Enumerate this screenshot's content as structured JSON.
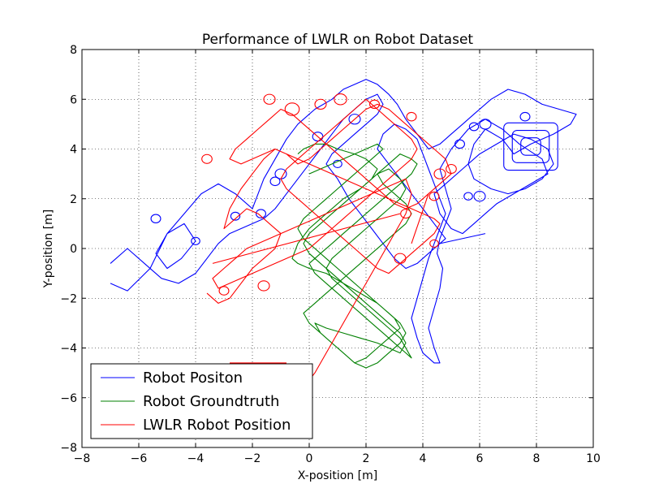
{
  "chart_data": {
    "type": "line",
    "title": "Performance of LWLR on Robot Dataset",
    "xlabel": "X-position [m]",
    "ylabel": "Y-position [m]",
    "xlim": [
      -8,
      10
    ],
    "ylim": [
      -8,
      8
    ],
    "xticks": [
      "−8",
      "−6",
      "−4",
      "−2",
      "0",
      "2",
      "4",
      "6",
      "8",
      "10"
    ],
    "yticks": [
      "−8",
      "−6",
      "−4",
      "−2",
      "0",
      "2",
      "4",
      "6",
      "8"
    ],
    "grid": true,
    "legend_position": "lower-left",
    "series": [
      {
        "name": "Robot Positon",
        "color": "#0000ff",
        "x": [
          -7.0,
          -6.4,
          -5.6,
          -5.0,
          -4.4,
          -4.0,
          -4.5,
          -5.0,
          -5.4,
          -5.0,
          -4.4,
          -3.8,
          -3.2,
          -2.6,
          -2.0,
          -1.6,
          -1.2,
          -0.8,
          -0.4,
          0.2,
          0.8,
          1.2,
          1.6,
          2.0,
          2.4,
          2.8,
          3.1,
          3.4,
          3.8,
          4.2,
          4.6,
          5.0,
          5.4,
          5.8,
          6.4,
          7.0,
          7.6,
          8.2,
          8.8,
          9.4,
          9.2,
          8.6,
          7.8,
          7.2,
          6.8,
          6.2,
          5.8,
          5.6,
          5.8,
          6.4,
          7.0,
          7.6,
          8.2,
          8.6,
          8.4,
          7.8,
          7.2,
          6.6,
          6.0,
          5.4,
          4.8,
          4.4,
          4.6,
          5.0,
          5.4,
          5.8,
          6.2,
          6.6,
          7.2,
          7.8,
          8.4,
          8.2,
          7.4,
          6.8,
          6.2,
          5.6,
          5.0,
          4.6,
          4.8,
          5.0,
          4.8,
          4.6,
          4.5,
          4.7,
          4.6,
          4.4,
          4.2,
          4.4,
          4.6,
          4.4,
          4.0,
          3.8,
          3.6,
          3.8,
          4.0,
          4.2,
          4.4,
          4.6,
          4.8,
          4.6,
          4.4,
          4.2,
          4.0,
          3.8,
          3.4,
          3.0,
          2.6,
          2.4,
          2.8,
          3.2,
          3.6,
          4.0,
          4.4,
          4.8,
          4.2,
          3.8,
          3.4,
          3.0,
          2.6,
          2.2,
          1.8,
          1.4,
          1.0,
          0.6,
          0.8,
          1.2,
          1.6,
          2.0,
          2.4,
          2.6,
          2.4,
          2.0,
          1.6,
          1.2,
          0.8,
          0.4,
          0.0,
          -0.4,
          -0.8,
          -1.2,
          -1.6,
          -2.0,
          -2.4,
          -2.8,
          -3.2,
          -3.6,
          -4.0,
          -4.6,
          -5.2,
          -5.8,
          -6.4,
          -7.0
        ],
        "y": [
          -1.4,
          -1.7,
          -0.8,
          0.6,
          1.0,
          0.3,
          -0.4,
          -0.8,
          -0.2,
          0.6,
          1.4,
          2.2,
          2.6,
          2.2,
          1.6,
          2.8,
          3.6,
          4.4,
          5.0,
          5.6,
          6.0,
          6.4,
          6.6,
          6.8,
          6.6,
          6.2,
          5.8,
          5.2,
          4.6,
          4.0,
          4.2,
          4.6,
          5.0,
          5.4,
          6.0,
          6.4,
          6.2,
          5.8,
          5.6,
          5.4,
          5.0,
          4.6,
          4.2,
          3.8,
          4.4,
          4.8,
          4.2,
          3.4,
          2.8,
          2.4,
          2.2,
          2.4,
          2.8,
          3.4,
          4.0,
          4.4,
          4.6,
          4.2,
          3.8,
          3.2,
          2.6,
          2.2,
          1.4,
          0.8,
          0.6,
          1.0,
          1.4,
          1.8,
          2.2,
          2.6,
          3.0,
          3.6,
          4.2,
          4.8,
          5.2,
          4.8,
          4.0,
          3.2,
          2.4,
          1.6,
          1.0,
          0.4,
          -0.2,
          -0.8,
          -1.6,
          -2.4,
          -3.2,
          -4.0,
          -4.6,
          -4.6,
          -4.2,
          -3.6,
          -2.8,
          -2.0,
          -1.2,
          -0.4,
          0.2,
          0.8,
          1.4,
          2.0,
          2.6,
          3.2,
          3.8,
          4.4,
          4.8,
          5.0,
          4.6,
          4.0,
          3.4,
          2.8,
          2.2,
          1.6,
          1.0,
          0.4,
          -0.2,
          -0.6,
          -0.8,
          -0.4,
          0.2,
          0.8,
          1.4,
          2.0,
          2.8,
          3.4,
          3.8,
          4.2,
          4.6,
          5.0,
          5.4,
          5.8,
          6.2,
          6.0,
          5.6,
          5.2,
          4.6,
          4.0,
          3.4,
          2.8,
          2.2,
          1.6,
          1.2,
          1.0,
          0.8,
          0.6,
          0.2,
          -0.4,
          -1.0,
          -1.4,
          -1.2,
          -0.6,
          0.0,
          -0.6
        ],
        "loops": [
          {
            "x": -5.4,
            "y": 1.2,
            "r": 0.17
          },
          {
            "x": -4.0,
            "y": 0.3,
            "r": 0.15
          },
          {
            "x": -2.6,
            "y": 1.3,
            "r": 0.16
          },
          {
            "x": -1.7,
            "y": 1.4,
            "r": 0.17
          },
          {
            "x": -1.0,
            "y": 3.0,
            "r": 0.2
          },
          {
            "x": -1.2,
            "y": 2.7,
            "r": 0.17
          },
          {
            "x": 0.3,
            "y": 4.5,
            "r": 0.18
          },
          {
            "x": 1.0,
            "y": 3.4,
            "r": 0.15
          },
          {
            "x": 1.6,
            "y": 5.2,
            "r": 0.2
          },
          {
            "x": 5.3,
            "y": 4.2,
            "r": 0.17
          },
          {
            "x": 5.8,
            "y": 4.9,
            "r": 0.16
          },
          {
            "x": 6.2,
            "y": 5.0,
            "r": 0.2
          },
          {
            "x": 7.6,
            "y": 5.3,
            "r": 0.17
          },
          {
            "x": 6.0,
            "y": 2.1,
            "r": 0.2
          },
          {
            "x": 5.6,
            "y": 2.1,
            "r": 0.15
          }
        ],
        "rings": [
          {
            "x": 7.8,
            "y": 4.1,
            "r": 0.35
          },
          {
            "x": 7.8,
            "y": 4.1,
            "r": 0.65
          },
          {
            "x": 7.8,
            "y": 4.1,
            "r": 0.95
          }
        ]
      },
      {
        "name": "Robot Groundtruth",
        "color": "#008000",
        "x": [
          -0.4,
          -0.2,
          0.2,
          0.6,
          1.0,
          1.6,
          2.0,
          2.4,
          2.2,
          1.8,
          1.2,
          0.6,
          0.0,
          -0.4,
          -0.6,
          -0.4,
          0.0,
          0.6,
          1.2,
          1.8,
          2.4,
          2.8,
          3.2,
          3.4,
          3.2,
          2.8,
          2.4,
          2.0,
          1.6,
          1.2,
          0.8,
          0.4,
          0.2,
          0.6,
          1.2,
          1.8,
          2.4,
          2.8,
          3.2,
          3.4,
          3.2,
          2.8,
          2.4,
          2.0,
          1.6,
          1.2,
          0.8,
          0.4,
          0.0,
          -0.2,
          0.0,
          0.4,
          0.8,
          1.2,
          1.6,
          2.0,
          2.4,
          2.8,
          3.2,
          3.4,
          3.2,
          2.8,
          2.4,
          2.0,
          1.6,
          1.2,
          0.8,
          0.6,
          0.8,
          1.2,
          1.6,
          2.0,
          2.4,
          2.8,
          3.2,
          3.4,
          3.6,
          3.4,
          3.0,
          2.6,
          2.2,
          1.8,
          1.4,
          1.0,
          0.6,
          0.2,
          0.0,
          0.4,
          0.8,
          1.2,
          1.6,
          2.0,
          2.4,
          2.8,
          3.2,
          3.6,
          3.8,
          3.6,
          3.2,
          2.8,
          2.4,
          2.6,
          3.0,
          3.4,
          3.6,
          3.4,
          3.0,
          2.6,
          2.2,
          1.8,
          1.4,
          1.0,
          0.6,
          0.2,
          -0.2,
          0.0,
          0.4,
          0.8,
          1.2,
          1.6,
          2.0,
          2.4,
          2.8,
          3.2,
          3.0,
          2.6,
          2.2,
          1.8,
          1.4,
          1.0,
          0.6,
          0.2,
          -0.2,
          -0.4,
          -0.2,
          0.2,
          0.6,
          1.0,
          1.4,
          1.8,
          2.2,
          2.6,
          2.4,
          2.0,
          1.6,
          1.2,
          0.8,
          0.4,
          0.0
        ],
        "y": [
          3.8,
          4.0,
          4.2,
          4.2,
          4.0,
          3.8,
          3.6,
          3.2,
          2.8,
          2.4,
          2.0,
          1.4,
          0.8,
          0.2,
          -0.4,
          -0.6,
          -0.8,
          -1.0,
          -1.4,
          -1.8,
          -2.2,
          -2.6,
          -3.0,
          -3.4,
          -3.8,
          -4.2,
          -4.6,
          -4.8,
          -4.6,
          -4.2,
          -3.8,
          -3.4,
          -3.0,
          -3.2,
          -3.4,
          -3.6,
          -3.8,
          -4.0,
          -4.2,
          -3.8,
          -3.4,
          -3.0,
          -2.6,
          -2.2,
          -1.8,
          -1.4,
          -1.0,
          -0.6,
          -0.2,
          0.2,
          0.6,
          1.0,
          1.4,
          1.8,
          2.2,
          2.6,
          3.0,
          3.2,
          2.8,
          2.4,
          2.0,
          1.6,
          1.2,
          0.8,
          0.4,
          0.0,
          -0.4,
          -0.8,
          -1.2,
          -1.6,
          -2.0,
          -2.4,
          -2.8,
          -3.2,
          -3.6,
          -4.0,
          -4.4,
          -4.2,
          -3.8,
          -3.4,
          -3.0,
          -2.6,
          -2.2,
          -1.8,
          -1.4,
          -1.0,
          -0.6,
          -0.2,
          0.2,
          0.6,
          1.0,
          1.4,
          1.8,
          2.2,
          2.6,
          3.0,
          3.4,
          3.6,
          3.8,
          3.4,
          3.0,
          2.6,
          2.2,
          1.8,
          1.4,
          1.0,
          0.6,
          0.2,
          -0.2,
          -0.6,
          -1.0,
          -1.4,
          -1.8,
          -2.2,
          -2.6,
          -3.0,
          -3.4,
          -3.8,
          -4.2,
          -4.6,
          -4.4,
          -4.0,
          -3.6,
          -3.2,
          -2.8,
          -2.4,
          -2.0,
          -1.6,
          -1.2,
          -0.8,
          -0.4,
          0.0,
          0.4,
          0.8,
          1.2,
          1.6,
          2.0,
          2.4,
          2.8,
          3.2,
          3.6,
          4.0,
          4.2,
          4.0,
          3.8,
          3.6,
          3.4,
          3.2,
          3.0
        ]
      },
      {
        "name": "LWLR Robot Position",
        "color": "#ff0000",
        "x": [
          -3.6,
          -3.2,
          -2.8,
          -2.4,
          -2.0,
          -1.6,
          -1.2,
          -1.0,
          -1.4,
          -1.8,
          -2.2,
          -2.6,
          -3.0,
          -2.8,
          -2.4,
          -2.0,
          -1.6,
          -1.2,
          -0.8,
          -0.4,
          0.0,
          0.4,
          0.8,
          1.2,
          1.6,
          2.0,
          2.4,
          2.8,
          3.2,
          3.6,
          4.0,
          4.4,
          4.8,
          5.0,
          4.6,
          4.2,
          3.8,
          3.4,
          3.0,
          2.6,
          2.2,
          1.8,
          1.4,
          1.0,
          0.6,
          0.2,
          -0.2,
          -0.6,
          -1.0,
          -1.4,
          -1.8,
          -2.2,
          -2.6,
          -2.8,
          -2.4,
          -2.0,
          -1.6,
          -1.2,
          -0.8,
          -0.4,
          0.0,
          0.4,
          0.8,
          1.2,
          1.6,
          2.0,
          2.4,
          2.8,
          3.2,
          3.6,
          4.0,
          4.4,
          4.6,
          4.4,
          4.0,
          3.6,
          3.2,
          2.8,
          2.4,
          2.0,
          1.6,
          1.2,
          0.8,
          0.4,
          0.0,
          -0.4,
          -0.8,
          -1.0,
          -0.8,
          -0.4,
          0.0,
          0.4,
          0.8,
          1.2,
          1.6,
          2.0,
          2.4,
          2.8,
          3.2,
          3.6,
          3.8,
          3.6,
          3.2,
          2.8,
          2.4,
          2.0,
          1.6,
          1.2,
          0.8,
          0.4,
          0.0,
          -0.4,
          -0.8,
          -1.2,
          -1.6,
          -2.0,
          -2.4,
          -2.8,
          -3.2,
          -3.4,
          -3.0,
          -2.6,
          -2.2,
          -1.8,
          -1.4,
          -1.0,
          -0.6,
          -0.2,
          0.2,
          0.6,
          1.0,
          1.4,
          1.8,
          2.2,
          2.6,
          3.0,
          3.4,
          3.6,
          3.4,
          3.0,
          2.6,
          2.2,
          1.8,
          1.4,
          1.0,
          0.6,
          0.2,
          -0.2,
          0.0
        ],
        "y": [
          -1.8,
          -2.2,
          -2.0,
          -1.4,
          -0.8,
          -0.4,
          0.0,
          0.6,
          1.0,
          1.4,
          1.6,
          1.2,
          0.8,
          1.6,
          2.4,
          3.0,
          3.6,
          4.0,
          3.8,
          3.4,
          3.6,
          4.0,
          4.4,
          4.8,
          5.2,
          5.6,
          5.8,
          5.6,
          5.2,
          4.8,
          4.4,
          4.0,
          3.6,
          3.0,
          2.6,
          2.2,
          1.8,
          1.6,
          1.8,
          2.2,
          2.6,
          3.0,
          3.4,
          3.8,
          4.2,
          4.6,
          5.0,
          5.4,
          5.6,
          5.2,
          4.8,
          4.4,
          4.0,
          3.6,
          3.4,
          3.6,
          3.8,
          4.0,
          3.8,
          3.6,
          3.4,
          3.2,
          3.0,
          2.8,
          2.6,
          2.4,
          2.2,
          2.0,
          1.8,
          1.6,
          1.4,
          1.2,
          1.0,
          0.6,
          0.2,
          -0.2,
          -0.6,
          -1.0,
          -0.8,
          -0.4,
          0.0,
          0.4,
          0.8,
          1.2,
          1.6,
          2.0,
          2.4,
          2.8,
          3.2,
          3.6,
          4.0,
          4.4,
          4.8,
          5.2,
          5.6,
          6.0,
          5.6,
          5.2,
          4.8,
          4.4,
          4.0,
          3.6,
          3.2,
          2.8,
          2.4,
          2.0,
          1.6,
          1.2,
          0.8,
          0.4,
          0.0,
          -0.2,
          -0.4,
          -0.6,
          -0.8,
          -1.0,
          -1.2,
          -1.4,
          -1.6,
          -1.2,
          -0.8,
          -0.4,
          0.0,
          0.2,
          0.4,
          0.6,
          0.8,
          1.0,
          1.2,
          1.4,
          1.6,
          1.8,
          2.0,
          2.2,
          2.4,
          2.6,
          2.8,
          2.2,
          1.4,
          0.6,
          -0.2,
          -1.0,
          -1.8,
          -2.6,
          -3.4,
          -4.2,
          -5.0,
          -5.6,
          -6.0
        ],
        "loops": [
          {
            "x": -1.4,
            "y": 6.0,
            "r": 0.2
          },
          {
            "x": -0.6,
            "y": 5.6,
            "r": 0.25
          },
          {
            "x": 0.4,
            "y": 5.8,
            "r": 0.2
          },
          {
            "x": 1.1,
            "y": 6.0,
            "r": 0.22
          },
          {
            "x": 2.3,
            "y": 5.8,
            "r": 0.17
          },
          {
            "x": 3.6,
            "y": 5.3,
            "r": 0.17
          },
          {
            "x": 4.6,
            "y": 3.0,
            "r": 0.2
          },
          {
            "x": 5.0,
            "y": 3.2,
            "r": 0.18
          },
          {
            "x": 4.4,
            "y": 2.1,
            "r": 0.17
          },
          {
            "x": 3.4,
            "y": 1.4,
            "r": 0.18
          },
          {
            "x": 4.4,
            "y": 0.2,
            "r": 0.15
          },
          {
            "x": 3.2,
            "y": -0.4,
            "r": 0.2
          },
          {
            "x": -3.0,
            "y": -1.7,
            "r": 0.17
          },
          {
            "x": -1.6,
            "y": -1.5,
            "r": 0.2
          },
          {
            "x": -3.6,
            "y": 3.6,
            "r": 0.18
          }
        ]
      }
    ],
    "extra_segments": [
      {
        "series": "Robot Positon",
        "x": [
          4.6,
          6.2
        ],
        "y": [
          0.2,
          0.6
        ]
      },
      {
        "series": "LWLR Robot Position",
        "x": [
          -2.8,
          -0.8
        ],
        "y": [
          -4.6,
          -4.6
        ]
      },
      {
        "series": "LWLR Robot Position",
        "x": [
          3.6,
          4.2
        ],
        "y": [
          0.2,
          2.2
        ]
      },
      {
        "series": "LWLR Robot Position",
        "x": [
          -3.4,
          3.2
        ],
        "y": [
          -0.6,
          1.4
        ]
      }
    ]
  }
}
